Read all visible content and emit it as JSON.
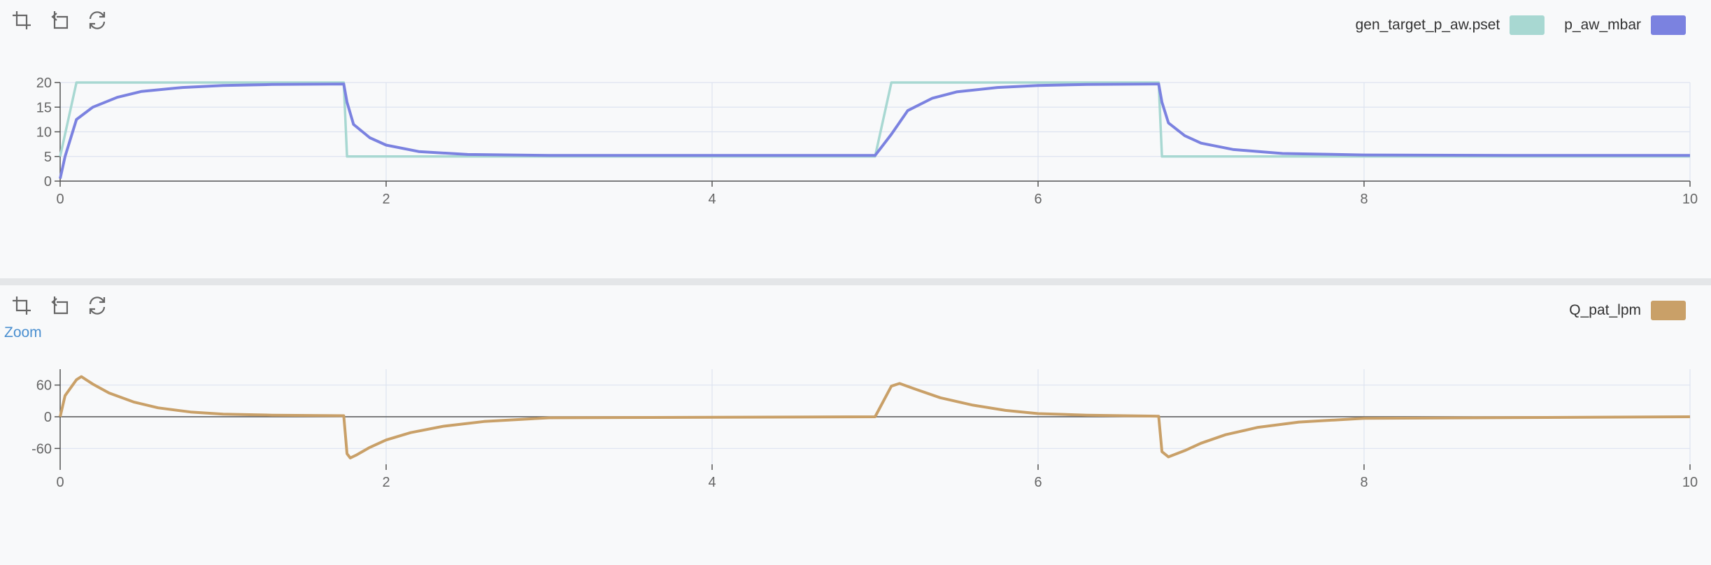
{
  "toolbar": {
    "icons": [
      "crop-zoom-icon",
      "undo-icon",
      "reset-icon"
    ]
  },
  "zoom_label": "Zoom",
  "colors": {
    "pset": "#a8d8d2",
    "p_aw": "#7b82e0",
    "q_pat": "#c9a068",
    "grid": "#dde3f0",
    "axis": "#555555"
  },
  "chart_data": [
    {
      "type": "line",
      "title": "",
      "xlabel": "",
      "ylabel": "",
      "xlim": [
        0,
        10
      ],
      "ylim": [
        0,
        20
      ],
      "xticks": [
        0,
        2,
        4,
        6,
        8,
        10
      ],
      "yticks": [
        0,
        5,
        10,
        15,
        20
      ],
      "grid": true,
      "legend_position": "top-right",
      "series": [
        {
          "name": "gen_target_p_aw.pset",
          "color": "#a8d8d2",
          "x": [
            0,
            0.1,
            1.74,
            1.76,
            5.0,
            5.1,
            6.74,
            6.76,
            10
          ],
          "y": [
            5,
            20,
            20,
            5,
            5,
            20,
            20,
            5,
            5
          ]
        },
        {
          "name": "p_aw_mbar",
          "color": "#7b82e0",
          "x": [
            0,
            0.03,
            0.1,
            0.2,
            0.35,
            0.5,
            0.75,
            1.0,
            1.3,
            1.74,
            1.76,
            1.8,
            1.9,
            2.0,
            2.2,
            2.5,
            3.0,
            4.0,
            5.0,
            5.1,
            5.2,
            5.35,
            5.5,
            5.75,
            6.0,
            6.3,
            6.74,
            6.76,
            6.8,
            6.9,
            7.0,
            7.2,
            7.5,
            8.0,
            9.0,
            10
          ],
          "y": [
            0.5,
            5,
            12.5,
            15,
            17,
            18.2,
            19.0,
            19.4,
            19.6,
            19.7,
            16,
            11.5,
            8.8,
            7.3,
            6.0,
            5.4,
            5.2,
            5.2,
            5.2,
            9.5,
            14.3,
            16.8,
            18.1,
            19.0,
            19.4,
            19.6,
            19.7,
            16,
            11.8,
            9.2,
            7.7,
            6.4,
            5.6,
            5.3,
            5.2,
            5.2
          ]
        }
      ]
    },
    {
      "type": "line",
      "title": "",
      "xlabel": "",
      "ylabel": "",
      "xlim": [
        0,
        10
      ],
      "ylim": [
        -90,
        90
      ],
      "xticks": [
        0,
        2,
        4,
        6,
        8,
        10
      ],
      "yticks": [
        -60,
        0,
        60
      ],
      "grid": true,
      "legend_position": "top-right",
      "series": [
        {
          "name": "Q_pat_lpm",
          "color": "#c9a068",
          "x": [
            0,
            0.03,
            0.1,
            0.13,
            0.2,
            0.3,
            0.45,
            0.6,
            0.8,
            1.0,
            1.3,
            1.74,
            1.76,
            1.78,
            1.82,
            1.9,
            2.0,
            2.15,
            2.35,
            2.6,
            3.0,
            5.0,
            5.1,
            5.15,
            5.25,
            5.4,
            5.6,
            5.8,
            6.0,
            6.3,
            6.74,
            6.76,
            6.8,
            6.9,
            7.0,
            7.15,
            7.35,
            7.6,
            8.0,
            10
          ],
          "y": [
            0,
            40,
            70,
            76,
            62,
            45,
            28,
            17,
            9,
            5,
            3,
            2,
            -70,
            -78,
            -72,
            -58,
            -44,
            -30,
            -18,
            -9,
            -2,
            0,
            58,
            63,
            52,
            36,
            22,
            12,
            6,
            3,
            1,
            -66,
            -76,
            -64,
            -50,
            -34,
            -20,
            -10,
            -3,
            0
          ]
        }
      ]
    }
  ]
}
